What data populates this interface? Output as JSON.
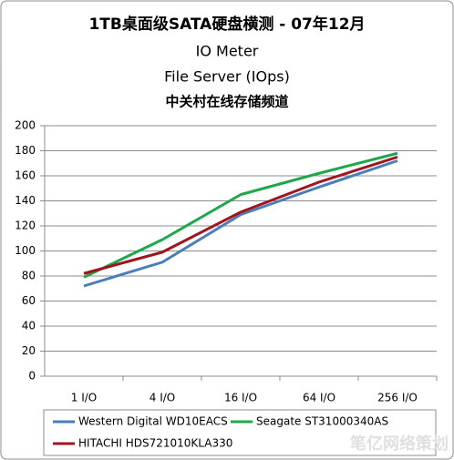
{
  "chart_data": {
    "type": "line",
    "title": "1TB桌面级SATA硬盘横测 - 07年12月",
    "subtitle": [
      "IO Meter",
      "File Server (IOps)"
    ],
    "source": "中关村在线存储频道",
    "watermark": "笔亿网络策划",
    "categories": [
      "1 I/O",
      "4 I/O",
      "16 I/O",
      "64 I/O",
      "256 I/O"
    ],
    "series": [
      {
        "name": "Western Digital WD10EACS",
        "color": "#4a7ebb",
        "values": [
          72,
          91,
          129,
          151,
          172
        ]
      },
      {
        "name": "Seagate ST31000340AS",
        "color": "#1fa84a",
        "values": [
          79,
          109,
          145,
          162,
          178
        ]
      },
      {
        "name": "HITACHI HDS721010KLA330",
        "color": "#a0141e",
        "values": [
          82,
          99,
          131,
          155,
          175
        ]
      }
    ],
    "ylim": [
      0,
      200
    ],
    "yticks": [
      0,
      20,
      40,
      60,
      80,
      100,
      120,
      140,
      160,
      180,
      200
    ],
    "grid": true
  }
}
